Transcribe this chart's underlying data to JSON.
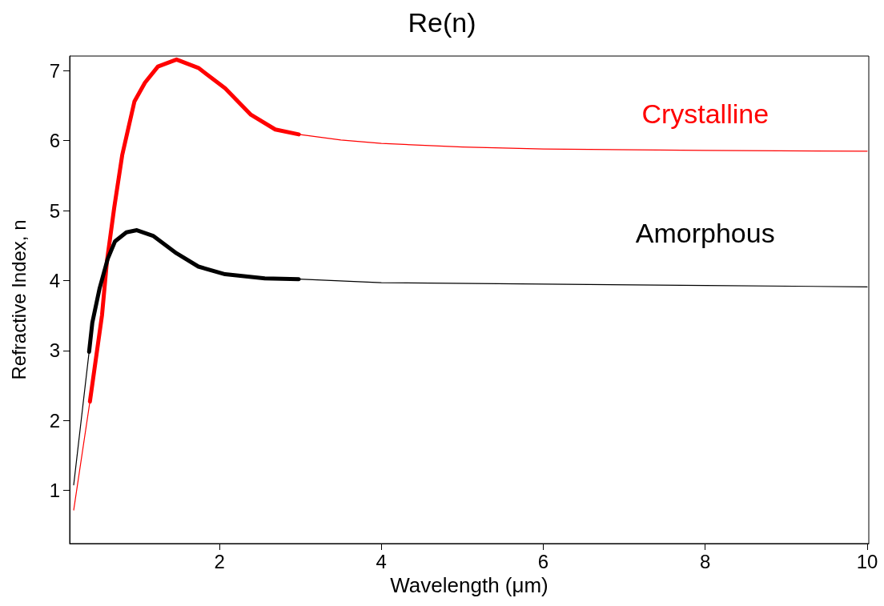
{
  "chart_data": {
    "type": "line",
    "title": "Re(n)",
    "xlabel": "Wavelength (μm)",
    "ylabel": "Refractive Index, n",
    "xlim": [
      0.15,
      10.02
    ],
    "ylim": [
      0.24,
      7.21
    ],
    "xticks": [
      2,
      4,
      6,
      8,
      10
    ],
    "yticks": [
      1,
      2,
      3,
      4,
      5,
      6,
      7
    ],
    "grid": false,
    "legend": false,
    "marker": "none",
    "series": [
      {
        "name": "Crystalline",
        "color": "#ff0000",
        "x": [
          0.2,
          0.4,
          0.55,
          0.61,
          0.7,
          0.8,
          0.95,
          1.08,
          1.24,
          1.47,
          1.74,
          2.07,
          2.39,
          2.69,
          2.98,
          3.5,
          4,
          5,
          6,
          8,
          10
        ],
        "values": [
          0.72,
          2.27,
          3.51,
          4.27,
          5.04,
          5.8,
          6.56,
          6.83,
          7.06,
          7.16,
          7.04,
          6.75,
          6.37,
          6.16,
          6.09,
          6.01,
          5.96,
          5.91,
          5.88,
          5.86,
          5.85
        ]
      },
      {
        "name": "Amorphous",
        "color": "#000000",
        "x": [
          0.2,
          0.39,
          0.43,
          0.52,
          0.62,
          0.71,
          0.85,
          0.98,
          1.18,
          1.47,
          1.74,
          2.07,
          2.56,
          2.98,
          4,
          6,
          8,
          10
        ],
        "values": [
          1.08,
          2.98,
          3.4,
          3.89,
          4.31,
          4.56,
          4.69,
          4.72,
          4.64,
          4.39,
          4.2,
          4.09,
          4.03,
          4.02,
          3.97,
          3.95,
          3.93,
          3.91
        ]
      },
      {
        "color": "#ff0000",
        "x": [
          0.4,
          0.55,
          0.61,
          0.7,
          0.8,
          0.95,
          1.08,
          1.24,
          1.47,
          1.74,
          2.07,
          2.39,
          2.69,
          2.98
        ],
        "values": [
          2.27,
          3.51,
          4.27,
          5.04,
          5.8,
          6.56,
          6.83,
          7.06,
          7.16,
          7.04,
          6.75,
          6.37,
          6.16,
          6.09
        ]
      },
      {
        "color": "#000000",
        "x": [
          0.39,
          0.43,
          0.52,
          0.62,
          0.71,
          0.85,
          0.98,
          1.18,
          1.47,
          1.74,
          2.07,
          2.56,
          2.98
        ],
        "values": [
          2.98,
          3.4,
          3.89,
          4.31,
          4.56,
          4.69,
          4.72,
          4.64,
          4.39,
          4.2,
          4.09,
          4.03,
          4.02
        ]
      }
    ]
  }
}
